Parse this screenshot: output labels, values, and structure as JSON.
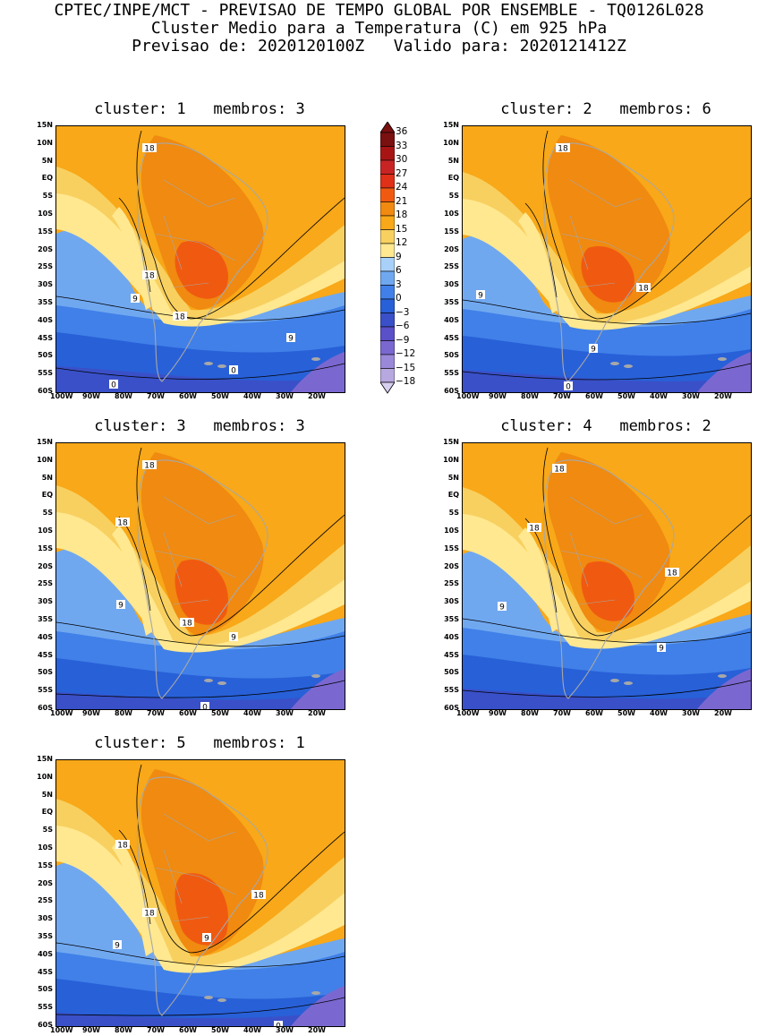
{
  "header": {
    "line1": "CPTEC/INPE/MCT - PREVISAO DE TEMPO GLOBAL POR ENSEMBLE - TQ0126L028",
    "line2": "Cluster Medio para a Temperatura (C) em 925 hPa",
    "line3": "Previsao de: 2020120100Z   Valido para: 2020121412Z"
  },
  "lat_labels": [
    "15N",
    "10N",
    "5N",
    "EQ",
    "5S",
    "10S",
    "15S",
    "20S",
    "25S",
    "30S",
    "35S",
    "40S",
    "45S",
    "50S",
    "55S",
    "60S"
  ],
  "lon_labels": [
    "100W",
    "90W",
    "80W",
    "70W",
    "60W",
    "50W",
    "40W",
    "30W",
    "20W"
  ],
  "colorbar": {
    "labels": [
      "36",
      "33",
      "30",
      "27",
      "24",
      "21",
      "18",
      "15",
      "12",
      "9",
      "6",
      "3",
      "0",
      "-3",
      "-6",
      "-9",
      "-12",
      "-15",
      "-18"
    ],
    "colors": [
      "#7a1010",
      "#a81414",
      "#c82424",
      "#e03018",
      "#f05a10",
      "#f08a10",
      "#f8a818",
      "#f8d060",
      "#ffe890",
      "#a8d0f8",
      "#70a8f0",
      "#4080e8",
      "#2860d8",
      "#3a50c8",
      "#5a50c8",
      "#7a68d0",
      "#9a88d8",
      "#b8a8e0",
      "#d8d0f0"
    ]
  },
  "panels": [
    {
      "title": "cluster: 1   membros: 3",
      "contours": [
        "18",
        "18",
        "18",
        "9",
        "9",
        "0",
        "0"
      ]
    },
    {
      "title": "cluster: 2   membros: 6",
      "contours": [
        "18",
        "18",
        "9",
        "9",
        "0"
      ]
    },
    {
      "title": "cluster: 3   membros: 3",
      "contours": [
        "18",
        "18",
        "18",
        "9",
        "9",
        "0"
      ]
    },
    {
      "title": "cluster: 4   membros: 2",
      "contours": [
        "18",
        "18",
        "18",
        "9",
        "9"
      ]
    },
    {
      "title": "cluster: 5   membros: 1",
      "contours": [
        "18",
        "18",
        "18",
        "9",
        "9",
        "0"
      ]
    }
  ]
}
